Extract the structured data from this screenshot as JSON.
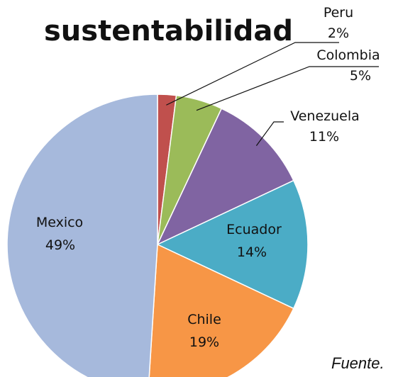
{
  "chart_data": {
    "type": "pie",
    "title": "sustentabilidad",
    "start_angle_deg": 0,
    "direction": "clockwise",
    "slices": [
      {
        "name": "Peru",
        "value": 2,
        "label": "2%",
        "color": "#c0504d"
      },
      {
        "name": "Colombia",
        "value": 5,
        "label": "5%",
        "color": "#9bbb59"
      },
      {
        "name": "Venezuela",
        "value": 11,
        "label": "11%",
        "color": "#8064a2"
      },
      {
        "name": "Ecuador",
        "value": 14,
        "label": "14%",
        "color": "#4bacc6"
      },
      {
        "name": "Chile",
        "value": 19,
        "label": "19%",
        "color": "#f79646"
      },
      {
        "name": "Mexico",
        "value": 49,
        "label": "49%",
        "color": "#a6b9dc"
      }
    ]
  },
  "footer_text": "Fuente."
}
